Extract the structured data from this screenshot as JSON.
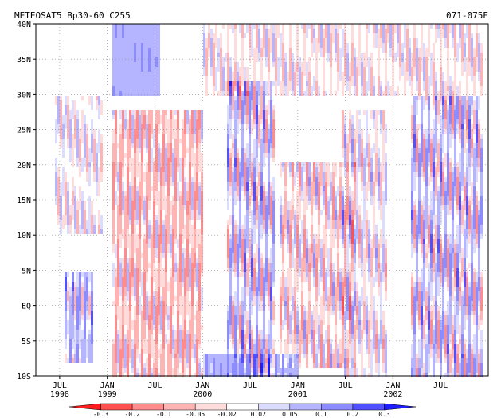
{
  "chart_data": {
    "type": "heatmap",
    "title_left": "METEOSAT5 Bp30-60 C255",
    "title_right": "071-075E",
    "x_axis": {
      "kind": "time",
      "range": [
        "1998-04",
        "2002-12"
      ],
      "ticks": [
        {
          "month": "JUL",
          "year": "1998"
        },
        {
          "month": "JAN",
          "year": "1999"
        },
        {
          "month": "JUL",
          "year": ""
        },
        {
          "month": "JAN",
          "year": "2000"
        },
        {
          "month": "JUL",
          "year": ""
        },
        {
          "month": "JAN",
          "year": "2001"
        },
        {
          "month": "JUL",
          "year": ""
        },
        {
          "month": "JAN",
          "year": "2002"
        },
        {
          "month": "JUL",
          "year": ""
        }
      ]
    },
    "y_axis": {
      "kind": "latitude",
      "range": [
        -10,
        40
      ],
      "ticks": [
        "40N",
        "35N",
        "30N",
        "25N",
        "20N",
        "15N",
        "10N",
        "5N",
        "EQ",
        "5S",
        "10S"
      ]
    },
    "grid": true,
    "colorbar": {
      "levels": [
        "-0.3",
        "-0.2",
        "-0.1",
        "-0.05",
        "-0.02",
        "0.02",
        "0.05",
        "0.1",
        "0.2",
        "0.3"
      ],
      "colors": [
        "#ff1e1e",
        "#ff5050",
        "#ff8c8c",
        "#ffb4b4",
        "#ffdcdc",
        "#ffffff",
        "#dcdcff",
        "#b4b4ff",
        "#8c8cff",
        "#5050ff",
        "#1e1eff"
      ]
    },
    "regions": [
      {
        "t": [
          1998.55,
          1998.85
        ],
        "lat": [
          -8,
          5
        ],
        "amp": 0.16,
        "bias": 0.06
      },
      {
        "t": [
          1998.45,
          1998.95
        ],
        "lat": [
          10,
          30
        ],
        "amp": 0.09,
        "bias": 0.0
      },
      {
        "t": [
          1999.05,
          1999.55
        ],
        "lat": [
          30,
          40
        ],
        "amp": 0.03,
        "bias": 0.08
      },
      {
        "t": [
          1999.05,
          2000.0
        ],
        "lat": [
          -10,
          28
        ],
        "amp": 0.15,
        "bias": -0.05
      },
      {
        "t": [
          2000.25,
          2000.75
        ],
        "lat": [
          -10,
          32
        ],
        "amp": 0.2,
        "bias": 0.03
      },
      {
        "t": [
          2000.8,
          2001.6
        ],
        "lat": [
          -9,
          20
        ],
        "amp": 0.14,
        "bias": -0.02
      },
      {
        "t": [
          2000.0,
          2001.0
        ],
        "lat": [
          -10,
          -7
        ],
        "amp": 0.05,
        "bias": 0.08
      },
      {
        "t": [
          2001.45,
          2001.95
        ],
        "lat": [
          -10,
          28
        ],
        "amp": 0.11,
        "bias": 0.0
      },
      {
        "t": [
          2002.2,
          2002.95
        ],
        "lat": [
          -10,
          30
        ],
        "amp": 0.2,
        "bias": 0.03
      },
      {
        "t": [
          2000.0,
          2002.95
        ],
        "lat": [
          30,
          40
        ],
        "amp": 0.09,
        "bias": -0.01
      }
    ]
  }
}
